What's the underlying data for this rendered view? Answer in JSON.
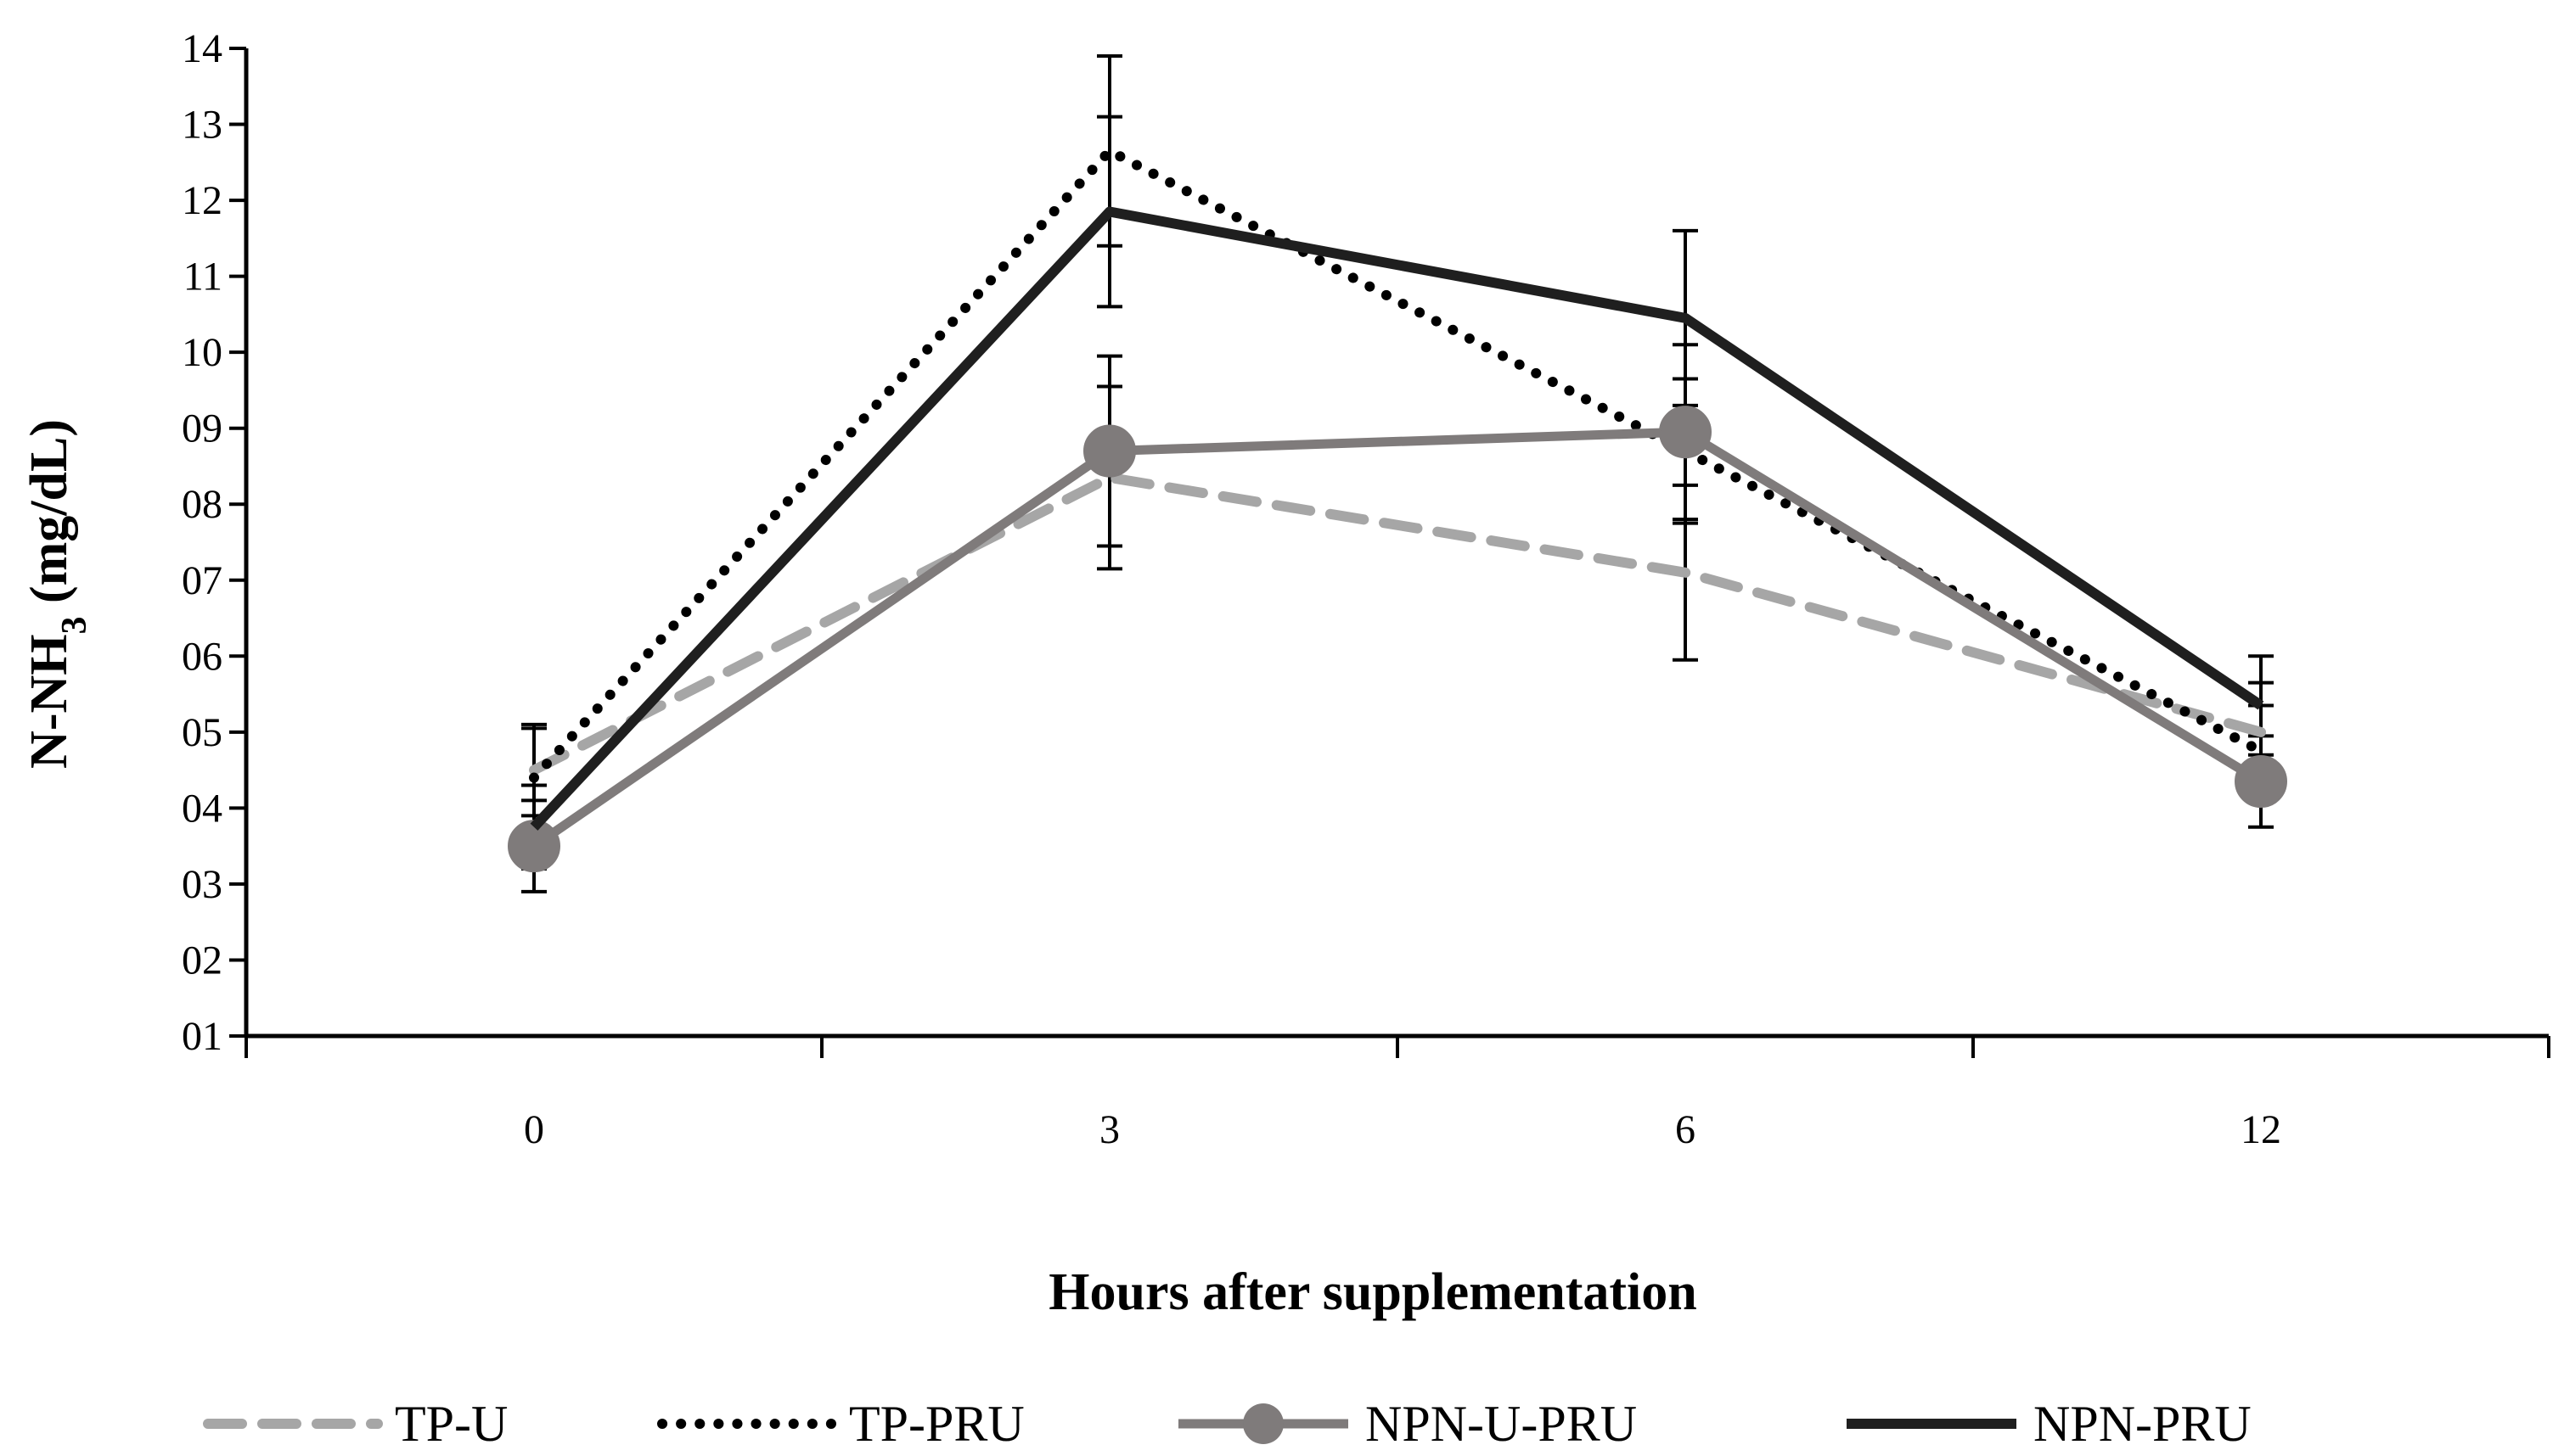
{
  "chart_data": {
    "type": "line",
    "title": "",
    "xlabel": "Hours after supplementation",
    "ylabel_main": "N-NH",
    "ylabel_sub": "3",
    "ylabel_tail": " (mg/dL)",
    "categories": [
      "0",
      "3",
      "6",
      "12"
    ],
    "ylim": [
      1,
      14
    ],
    "yticks": [
      {
        "value": 1,
        "label": "01"
      },
      {
        "value": 2,
        "label": "02"
      },
      {
        "value": 3,
        "label": "03"
      },
      {
        "value": 4,
        "label": "04"
      },
      {
        "value": 5,
        "label": "05"
      },
      {
        "value": 6,
        "label": "06"
      },
      {
        "value": 7,
        "label": "07"
      },
      {
        "value": 8,
        "label": "08"
      },
      {
        "value": 9,
        "label": "09"
      },
      {
        "value": 10,
        "label": "10"
      },
      {
        "value": 11,
        "label": "11"
      },
      {
        "value": 12,
        "label": "12"
      },
      {
        "value": 13,
        "label": "13"
      },
      {
        "value": 14,
        "label": "14"
      }
    ],
    "grid": false,
    "legend_position": "bottom",
    "series": [
      {
        "name": "TP-U",
        "style": "dashed",
        "marker": "none",
        "color": "#a6a6a6",
        "values": [
          4.5,
          8.35,
          7.1,
          5.0
        ],
        "errors": [
          0.6,
          1.2,
          1.15,
          0.65
        ]
      },
      {
        "name": "TP-PRU",
        "style": "dotted",
        "marker": "none",
        "color": "#000000",
        "values": [
          4.4,
          12.65,
          8.7,
          4.75
        ],
        "errors": [
          0.65,
          1.25,
          0.95,
          0.6
        ]
      },
      {
        "name": "NPN-U-PRU",
        "style": "solid",
        "marker": "circle",
        "color": "#7f7b7b",
        "values": [
          3.5,
          8.7,
          8.95,
          4.35
        ],
        "errors": [
          0.6,
          1.25,
          1.15,
          0.6
        ]
      },
      {
        "name": "NPN-PRU",
        "style": "solid",
        "marker": "none",
        "color": "#1f1f1f",
        "values": [
          3.75,
          11.85,
          10.45,
          5.35
        ],
        "errors": [
          0.55,
          1.25,
          1.15,
          0.65
        ]
      }
    ]
  }
}
